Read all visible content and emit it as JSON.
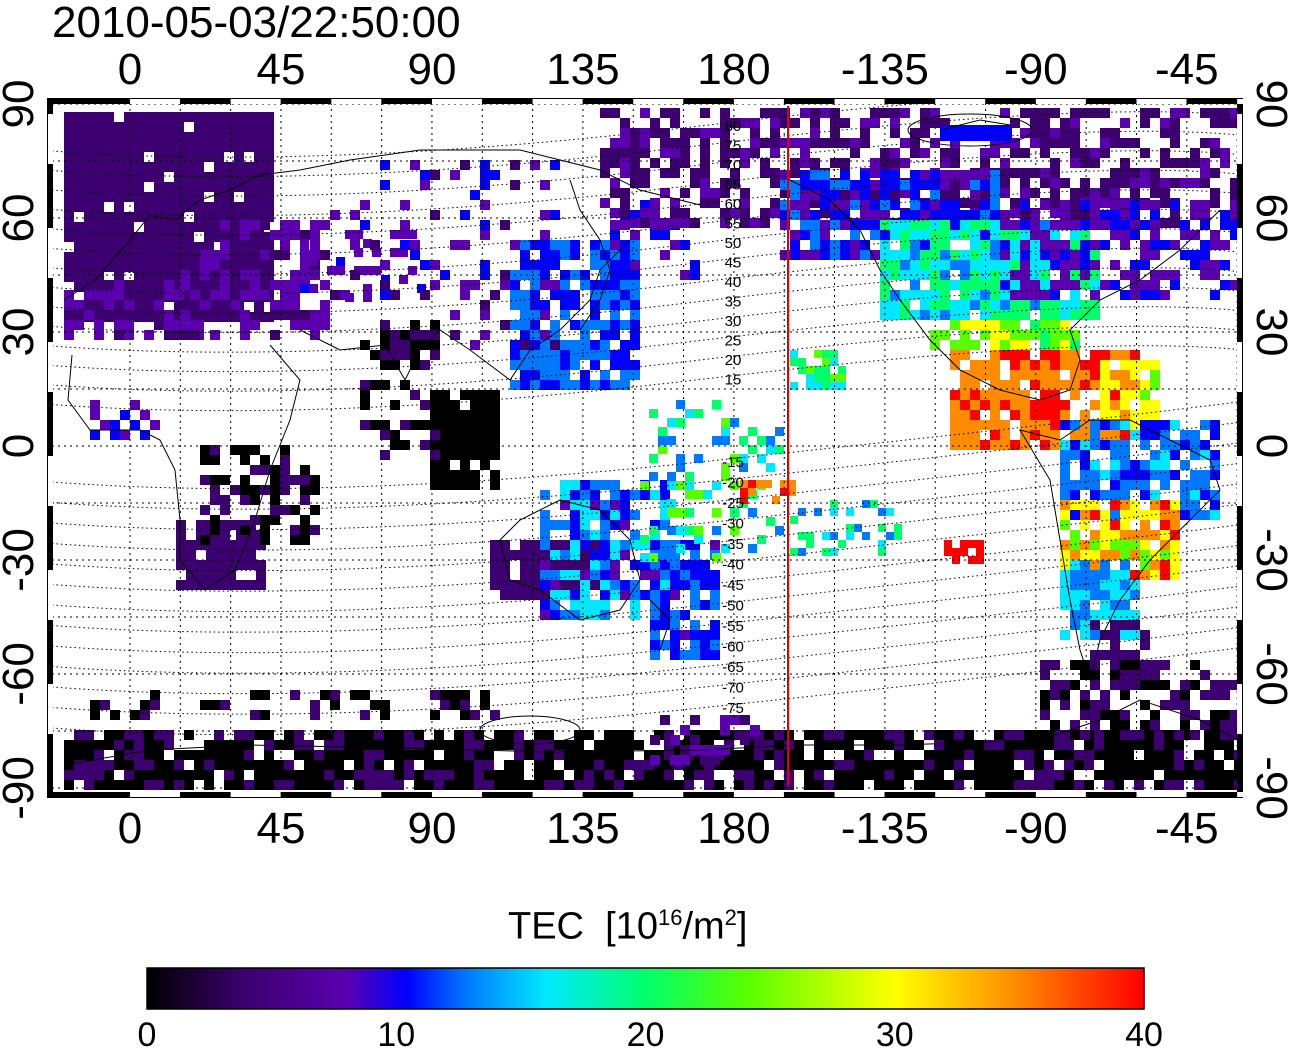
{
  "timestamp": "2010-05-03/22:50:00",
  "map": {
    "lon_ticks": [
      "0",
      "45",
      "90",
      "135",
      "180",
      "-135",
      "-90",
      "-45"
    ],
    "lat_ticks_left": [
      "90",
      "60",
      "30",
      "0",
      "-30",
      "-60",
      "-90"
    ],
    "lat_ticks_right": [
      "90",
      "60",
      "30",
      "0",
      "-30",
      "-60",
      "-90"
    ],
    "magnetic_contours": {
      "north": [
        "80",
        "75",
        "70",
        "65",
        "60",
        "55",
        "50",
        "45",
        "40",
        "35",
        "30",
        "25",
        "20",
        "15"
      ],
      "south": [
        "-15",
        "-20",
        "-25",
        "-30",
        "-35",
        "-40",
        "-45",
        "-50",
        "-55",
        "-60",
        "-65",
        "-70",
        "-75"
      ]
    },
    "terminator_color": "#e00000"
  },
  "colorbar": {
    "title": "TEC",
    "unit_prefix": "[10",
    "unit_exp": "16",
    "unit_mid": "/m",
    "unit_exp2": "2",
    "unit_suffix": "]",
    "ticks": [
      "0",
      "10",
      "20",
      "30",
      "40"
    ],
    "range": [
      0,
      40
    ],
    "colors": [
      "#000000",
      "#3d0070",
      "#5a00b0",
      "#0000ff",
      "#0078ff",
      "#00e8ff",
      "#00ff6a",
      "#58ff00",
      "#ffff00",
      "#ff8c00",
      "#ff0000"
    ]
  }
}
